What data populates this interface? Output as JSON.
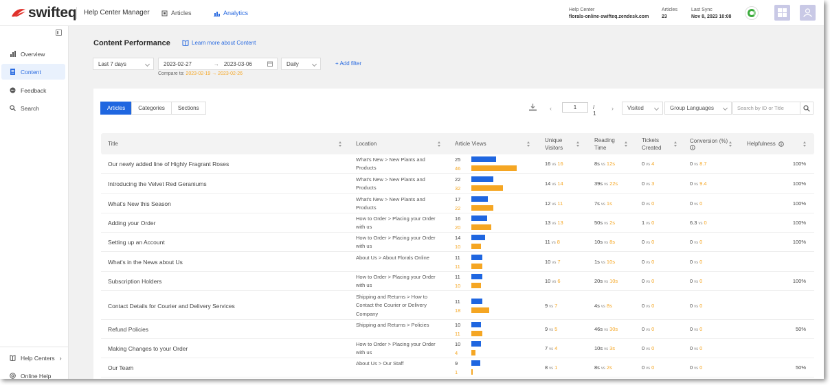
{
  "brand": {
    "name": "swifteq",
    "logo_color": "#e0312b"
  },
  "topbar": {
    "title": "Help Center Manager",
    "nav": [
      {
        "label": "Articles",
        "icon": "article-icon"
      },
      {
        "label": "Analytics",
        "icon": "chart-icon",
        "active": true
      }
    ],
    "help_center_label": "Help Center",
    "help_center_value": "florals-online-swifteq.zendesk.com",
    "articles_label": "Articles",
    "articles_value": "23",
    "last_sync_label": "Last Sync",
    "last_sync_value": "Nov 8, 2023 10:08"
  },
  "sidebar": {
    "items": [
      {
        "label": "Overview",
        "icon": "bar-chart-icon"
      },
      {
        "label": "Content",
        "icon": "document-icon",
        "active": true
      },
      {
        "label": "Feedback",
        "icon": "chat-icon"
      },
      {
        "label": "Search",
        "icon": "search-icon"
      }
    ],
    "bottom": [
      {
        "label": "Help Centers",
        "icon": "book-icon"
      },
      {
        "label": "Online Help",
        "icon": "help-icon"
      }
    ]
  },
  "content": {
    "title": "Content Performance",
    "learn_more": "Learn more about Content",
    "filters": {
      "period": "Last 7 days",
      "date_from": "2023-02-27",
      "date_arrow": "→",
      "date_to": "2023-03-06",
      "granularity": "Daily",
      "add_filter": "+ Add filter",
      "compare_label": "Compare to:",
      "compare_range": "2023-02-19 → 2023-02-26"
    },
    "tabs": [
      "Articles",
      "Categories",
      "Sections"
    ],
    "pager": {
      "page": "1",
      "total": "/ 1"
    },
    "sort_select": "Visited",
    "group_select": "Group Languages",
    "search_placeholder": "Search by ID or Title"
  },
  "table": {
    "columns": [
      "Title",
      "Location",
      "Article Views",
      "Unique Visitors",
      "Reading Time",
      "Tickets Created",
      "Conversion (%)",
      "Helpfulness"
    ],
    "rows": [
      {
        "title": "Our newly added line of Highly Fragrant Roses",
        "location": "What's New > New Plants and Products",
        "views": [
          25,
          46
        ],
        "visitors": [
          "16",
          "16"
        ],
        "reading": [
          "8s",
          "12s"
        ],
        "tickets": [
          "0",
          "4"
        ],
        "conversion": [
          "0",
          "8.7"
        ],
        "help": "100%"
      },
      {
        "title": "Introducing the Velvet Red Geraniums",
        "location": "What's New > New Plants and Products",
        "views": [
          22,
          32
        ],
        "visitors": [
          "14",
          "14"
        ],
        "reading": [
          "39s",
          "22s"
        ],
        "tickets": [
          "0",
          "3"
        ],
        "conversion": [
          "0",
          "9.4"
        ],
        "help": "100%"
      },
      {
        "title": "What's New this Season",
        "location": "What's New > New Plants and Products",
        "views": [
          17,
          22
        ],
        "visitors": [
          "12",
          "11"
        ],
        "reading": [
          "7s",
          "1s"
        ],
        "tickets": [
          "0",
          "0"
        ],
        "conversion": [
          "0",
          "0"
        ],
        "help": "100%"
      },
      {
        "title": "Adding your Order",
        "location": "How to Order > Placing your Order with us",
        "views": [
          16,
          20
        ],
        "visitors": [
          "13",
          "13"
        ],
        "reading": [
          "50s",
          "2s"
        ],
        "tickets": [
          "1",
          "0"
        ],
        "conversion": [
          "6.3",
          "0"
        ],
        "help": "100%"
      },
      {
        "title": "Setting up an Account",
        "location": "How to Order > Placing your Order with us",
        "views": [
          14,
          10
        ],
        "visitors": [
          "11",
          "8"
        ],
        "reading": [
          "10s",
          "8s"
        ],
        "tickets": [
          "0",
          "0"
        ],
        "conversion": [
          "0",
          "0"
        ],
        "help": "100%"
      },
      {
        "title": "What's in the News about Us",
        "location": "About Us > About Florals Online",
        "views": [
          11,
          11
        ],
        "visitors": [
          "10",
          "7"
        ],
        "reading": [
          "1s",
          "10s"
        ],
        "tickets": [
          "0",
          "0"
        ],
        "conversion": [
          "0",
          "0"
        ],
        "help": ""
      },
      {
        "title": "Subscription Holders",
        "location": "How to Order > Placing your Order with us",
        "views": [
          11,
          10
        ],
        "visitors": [
          "10",
          "6"
        ],
        "reading": [
          "20s",
          "10s"
        ],
        "tickets": [
          "0",
          "0"
        ],
        "conversion": [
          "0",
          "0"
        ],
        "help": "100%"
      },
      {
        "title": "Contact Details for Courier and Delivery Services",
        "location": "Shipping and Returns > How to Contact the Courier or Delivery Company",
        "views": [
          11,
          18
        ],
        "visitors": [
          "9",
          "7"
        ],
        "reading": [
          "4s",
          "8s"
        ],
        "tickets": [
          "0",
          "0"
        ],
        "conversion": [
          "0",
          "0"
        ],
        "help": ""
      },
      {
        "title": "Refund Policies",
        "location": "Shipping and Returns > Policies",
        "views": [
          10,
          11
        ],
        "visitors": [
          "9",
          "5"
        ],
        "reading": [
          "46s",
          "30s"
        ],
        "tickets": [
          "0",
          "0"
        ],
        "conversion": [
          "0",
          "0"
        ],
        "help": "50%"
      },
      {
        "title": "Making Changes to your Order",
        "location": "How to Order > Placing your Order with us",
        "views": [
          10,
          4
        ],
        "visitors": [
          "7",
          "4"
        ],
        "reading": [
          "10s",
          "3s"
        ],
        "tickets": [
          "0",
          "0"
        ],
        "conversion": [
          "0",
          "0"
        ],
        "help": ""
      },
      {
        "title": "Our Team",
        "location": "About Us > Our Staff",
        "views": [
          9,
          1
        ],
        "visitors": [
          "8",
          "1"
        ],
        "reading": [
          "8s",
          "2s"
        ],
        "tickets": [
          "0",
          "0"
        ],
        "conversion": [
          "0",
          "0"
        ],
        "help": "50%"
      }
    ],
    "vs_label": "vs",
    "colors": {
      "current": "#1f66e0",
      "previous": "#f5a623"
    }
  }
}
